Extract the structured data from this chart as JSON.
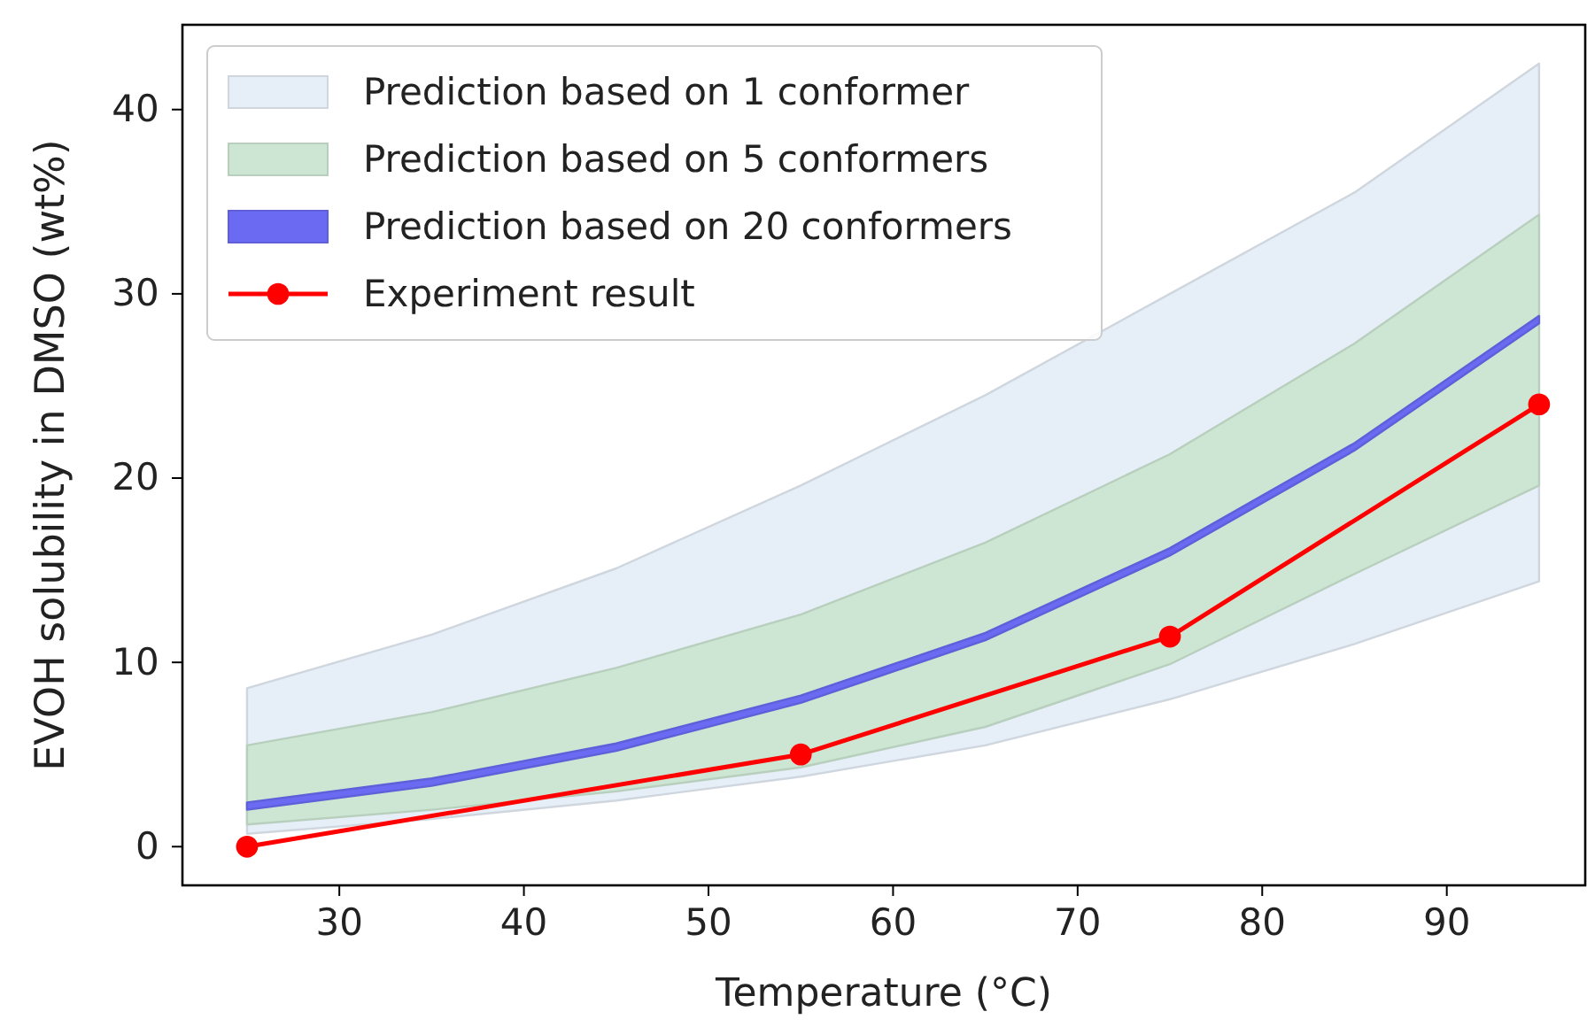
{
  "chart_data": {
    "type": "line",
    "xlabel": "Temperature (°C)",
    "ylabel": "EVOH solubility in DMSO (wt%)",
    "xlim": [
      21.5,
      97.5
    ],
    "ylim": [
      -2.1,
      44.6
    ],
    "xticks": [
      30,
      40,
      50,
      60,
      70,
      80,
      90
    ],
    "yticks": [
      0,
      10,
      20,
      30,
      40
    ],
    "grid": false,
    "legend": "top left",
    "marker": "circle",
    "line_style": "solid",
    "series": [
      {
        "name": "Prediction based on 1 conformer",
        "type": "area",
        "color": "#e6eef7",
        "x": [
          25,
          35,
          45,
          55,
          65,
          75,
          85,
          95
        ],
        "values": [
          null,
          null,
          null,
          null,
          null,
          null,
          null,
          null
        ],
        "lower": [
          0.7,
          1.5,
          2.5,
          3.8,
          5.5,
          8.0,
          11.0,
          14.4
        ],
        "upper": [
          8.6,
          11.5,
          15.1,
          19.6,
          24.5,
          30.0,
          35.5,
          42.5
        ]
      },
      {
        "name": "Prediction based on 5 conformers",
        "type": "area",
        "color": "#cde6d3",
        "x": [
          25,
          35,
          45,
          55,
          65,
          75,
          85,
          95
        ],
        "values": [
          null,
          null,
          null,
          null,
          null,
          null,
          null,
          null
        ],
        "lower": [
          1.2,
          2.0,
          3.0,
          4.3,
          6.5,
          9.9,
          14.8,
          19.6
        ],
        "upper": [
          5.5,
          7.3,
          9.7,
          12.6,
          16.5,
          21.3,
          27.3,
          34.3
        ]
      },
      {
        "name": "Prediction based on 20 conformers",
        "type": "area",
        "color": "#6a6af2",
        "x": [
          25,
          35,
          45,
          55,
          65,
          75,
          85,
          95
        ],
        "values": [
          null,
          null,
          null,
          null,
          null,
          null,
          null,
          null
        ],
        "lower": [
          2.0,
          3.3,
          5.2,
          7.8,
          11.2,
          15.8,
          21.5,
          28.4
        ],
        "upper": [
          2.4,
          3.7,
          5.6,
          8.2,
          11.6,
          16.2,
          21.9,
          28.8
        ]
      },
      {
        "name": "Experiment result",
        "color": "#ff0000",
        "x": [
          25,
          55,
          75,
          95
        ],
        "values": [
          0,
          5.0,
          11.4,
          24.0
        ]
      }
    ]
  }
}
